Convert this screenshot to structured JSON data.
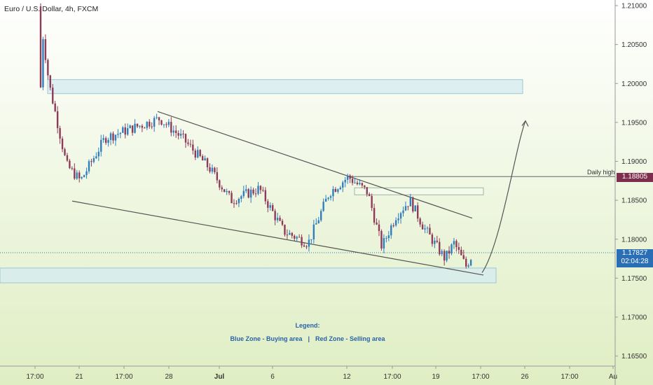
{
  "header": {
    "title": "Euro / U.S. Dollar, 4h, FXCM"
  },
  "legend": {
    "title": "Legend:",
    "blue_zone": "Blue Zone - Buying area",
    "separator": "|",
    "red_zone": "Red Zone - Selling area"
  },
  "annotations": {
    "daily_high_label": "Daily high",
    "daily_high_price": "1.18805",
    "current_price": "1.17827",
    "countdown": "02:04:28"
  },
  "colors": {
    "bg_top": "#ffffff",
    "bg_bottom": "#dfeec3",
    "bull_candle": "#2f7fbf",
    "bear_candle": "#8e3a59",
    "trendline": "#555555",
    "zone_fill": "#d4ebf0",
    "daily_high_tag": "#7d2e4d",
    "current_price_tag": "#2a6eb5"
  },
  "chart_data": {
    "type": "candlestick",
    "title": "Euro / U.S. Dollar, 4h, FXCM",
    "y_axis": {
      "position": "right",
      "ylim": [
        1.162,
        1.211
      ],
      "ticks": [
        "1.21000",
        "1.20500",
        "1.20000",
        "1.19500",
        "1.19000",
        "1.18500",
        "1.18000",
        "1.17500",
        "1.17000",
        "1.16500"
      ]
    },
    "x_axis": {
      "ticks": [
        "17:00",
        "21",
        "17:00",
        "28",
        "Jul",
        "6",
        "12",
        "17:00",
        "19",
        "17:00",
        "26",
        "17:00",
        "Au"
      ]
    },
    "grid": false,
    "zones": [
      {
        "name": "upper-blue-zone",
        "top": 1.2005,
        "bottom": 1.1987
      },
      {
        "name": "lower-blue-zone",
        "top": 1.1763,
        "bottom": 1.1744
      },
      {
        "name": "resistance-zone",
        "top": 1.1866,
        "bottom": 1.1857
      }
    ],
    "daily_high": 1.18805,
    "current_price": 1.17827,
    "trendlines": [
      {
        "name": "upper-trendline",
        "from": {
          "x": "28",
          "y": 1.1964
        },
        "to": {
          "x": "19 17:00",
          "y": 1.1827
        }
      },
      {
        "name": "lower-trendline",
        "from": {
          "x": "21",
          "y": 1.1849
        },
        "to": {
          "x": "19 17:00",
          "y": 1.1754
        }
      }
    ],
    "projection": {
      "from": 1.1757,
      "to": 1.1952,
      "direction": "up"
    },
    "anchor_points": [
      {
        "x": "17:00",
        "y": 1.2099
      },
      {
        "x": "17:00",
        "y": 1.2
      },
      {
        "x": "21",
        "y": 1.1895
      },
      {
        "x": "21",
        "y": 1.1875
      },
      {
        "x": "17:00",
        "y": 1.193
      },
      {
        "x": "28",
        "y": 1.1955
      },
      {
        "x": "28",
        "y": 1.193
      },
      {
        "x": "Jul",
        "y": 1.189
      },
      {
        "x": "Jul",
        "y": 1.185
      },
      {
        "x": "6",
        "y": 1.1865
      },
      {
        "x": "6",
        "y": 1.181
      },
      {
        "x": "6",
        "y": 1.1795
      },
      {
        "x": "12",
        "y": 1.186
      },
      {
        "x": "12",
        "y": 1.188
      },
      {
        "x": "12",
        "y": 1.186
      },
      {
        "x": "17:00",
        "y": 1.179
      },
      {
        "x": "17:00",
        "y": 1.183
      },
      {
        "x": "17:00",
        "y": 1.185
      },
      {
        "x": "19",
        "y": 1.1815
      },
      {
        "x": "19",
        "y": 1.1795
      },
      {
        "x": "19",
        "y": 1.1775
      },
      {
        "x": "19",
        "y": 1.1795
      },
      {
        "x": "19",
        "y": 1.1765
      },
      {
        "x": "19",
        "y": 1.1782
      }
    ]
  }
}
